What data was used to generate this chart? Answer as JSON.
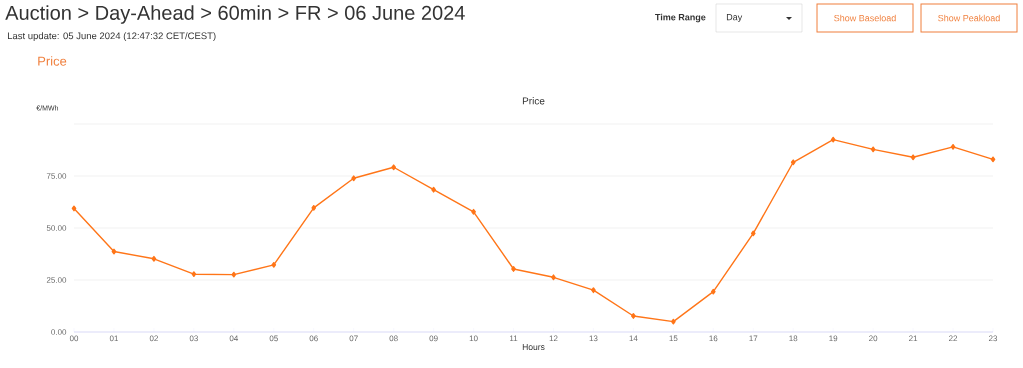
{
  "chart_data": {
    "type": "line",
    "title": "Price",
    "subtitle": "Last update: 05 June 2024 (12:47:32 CET/CEST)",
    "xlabel": "Hours",
    "ylabel": "€/MWh",
    "annotations": [
      "Auction > Day-Ahead > 60min > FR > 06 June 2024",
      "Price",
      "Time Range",
      "Day",
      "Show Baseload",
      "Show Peakload"
    ],
    "categories": [
      "00",
      "01",
      "02",
      "03",
      "04",
      "05",
      "06",
      "07",
      "08",
      "09",
      "10",
      "11",
      "12",
      "13",
      "14",
      "15",
      "16",
      "17",
      "18",
      "19",
      "20",
      "21",
      "22",
      "23"
    ],
    "series": [
      {
        "color": "#ff7518",
        "values": [
          59.4,
          38.7,
          35.2,
          27.8,
          27.6,
          32.3,
          59.7,
          73.9,
          79.2,
          68.4,
          57.8,
          30.3,
          26.3,
          20.1,
          7.7,
          5.0,
          19.4,
          47.4,
          81.6,
          92.5,
          87.8,
          84.0,
          89.0,
          83.0
        ]
      }
    ],
    "ylim": [
      0,
      100
    ],
    "yticks": [
      {
        "value": 0,
        "label": "0.00"
      },
      {
        "value": 25,
        "label": "25.00"
      },
      {
        "value": 50,
        "label": "50.00"
      },
      {
        "value": 75,
        "label": "75.00"
      },
      {
        "value": 100,
        "label": null
      }
    ],
    "grid": "y",
    "marker": "diamond",
    "line_style": "solid"
  }
}
